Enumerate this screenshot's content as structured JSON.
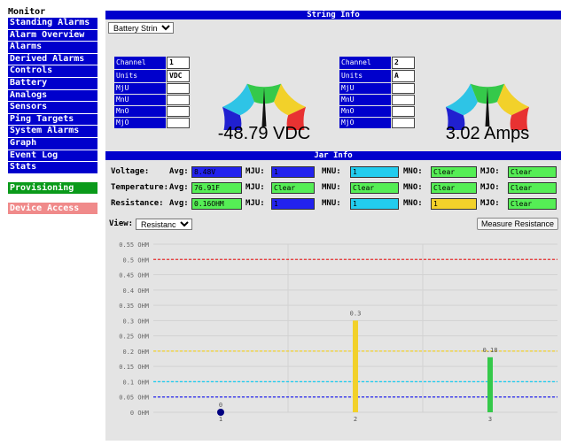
{
  "sidebar": {
    "title": "Monitor",
    "items": [
      {
        "label": "Standing Alarms"
      },
      {
        "label": "Alarm Overview"
      },
      {
        "label": "Alarms"
      },
      {
        "label": "Derived Alarms"
      },
      {
        "label": "Controls"
      },
      {
        "label": "Battery"
      },
      {
        "label": "Analogs"
      },
      {
        "label": "Sensors"
      },
      {
        "label": "Ping Targets"
      },
      {
        "label": "System Alarms"
      },
      {
        "label": "Graph"
      },
      {
        "label": "Event Log"
      },
      {
        "label": "Stats"
      }
    ],
    "provisioning": "Provisioning",
    "device_access": "Device Access"
  },
  "string_info": {
    "header": "String Info",
    "selector_value": "Battery String 1",
    "voltage": {
      "labels": [
        "Channel",
        "Units",
        "MjU",
        "MnU",
        "MnO",
        "MjO"
      ],
      "values": [
        "1",
        "VDC",
        "",
        "",
        "",
        ""
      ],
      "reading": "-48.79 VDC",
      "needle_fraction": 0.5
    },
    "current": {
      "labels": [
        "Channel",
        "Units",
        "MjU",
        "MnU",
        "MnO",
        "MjO"
      ],
      "values": [
        "2",
        "A",
        "",
        "",
        "",
        ""
      ],
      "reading": "3.02 Amps",
      "needle_fraction": 0.5
    },
    "gauge_colors": [
      "#2020d0",
      "#2ec4e6",
      "#35c94a",
      "#f2d12a",
      "#e83232"
    ]
  },
  "jar_info": {
    "header": "Jar Info",
    "rows": [
      {
        "label": "Voltage:",
        "avg_label": "Avg:",
        "avg": "8.48V",
        "avg_color": "#2222ee",
        "mju_label": "MJU:",
        "mju": "1",
        "mju_color": "#2222ee",
        "mnu_label": "MNU:",
        "mnu": "1",
        "mnu_color": "#22ccee",
        "mno_label": "MNO:",
        "mno": "Clear",
        "mno_color": "#55ee55",
        "mjo_label": "MJO:",
        "mjo": "Clear",
        "mjo_color": "#55ee55"
      },
      {
        "label": "Temperature:",
        "avg_label": "Avg:",
        "avg": "76.91F",
        "avg_color": "#55ee55",
        "mju_label": "MJU:",
        "mju": "Clear",
        "mju_color": "#55ee55",
        "mnu_label": "MNU:",
        "mnu": "Clear",
        "mnu_color": "#55ee55",
        "mno_label": "MNO:",
        "mno": "Clear",
        "mno_color": "#55ee55",
        "mjo_label": "MJO:",
        "mjo": "Clear",
        "mjo_color": "#55ee55"
      },
      {
        "label": "Resistance:",
        "avg_label": "Avg:",
        "avg": "0.16OHM",
        "avg_color": "#55ee55",
        "mju_label": "MJU:",
        "mju": "1",
        "mju_color": "#2222ee",
        "mnu_label": "MNU:",
        "mnu": "1",
        "mnu_color": "#22ccee",
        "mno_label": "MNO:",
        "mno": "1",
        "mno_color": "#f2d12a",
        "mjo_label": "MJO:",
        "mjo": "Clear",
        "mjo_color": "#55ee55"
      }
    ],
    "view_label": "View:",
    "view_value": "Resistance",
    "measure_button": "Measure Resistance"
  },
  "chart_data": {
    "type": "bar",
    "categories": [
      "1",
      "2",
      "3"
    ],
    "values": [
      0,
      0.3,
      0.18
    ],
    "value_labels": [
      "0",
      "0.3",
      "0.18"
    ],
    "bar_colors": [
      "#000080",
      "#f2d12a",
      "#35c94a"
    ],
    "yticks": [
      "0 OHM",
      "0.05 OHM",
      "0.1 OHM",
      "0.15 OHM",
      "0.2 OHM",
      "0.25 OHM",
      "0.3 OHM",
      "0.35 OHM",
      "0.4 OHM",
      "0.45 OHM",
      "0.5 OHM",
      "0.55 OHM"
    ],
    "ylim": [
      0,
      0.55
    ],
    "thresholds": [
      {
        "value": 0.5,
        "color": "#e83232"
      },
      {
        "value": 0.2,
        "color": "#f2d12a"
      },
      {
        "value": 0.1,
        "color": "#22ccee"
      },
      {
        "value": 0.05,
        "color": "#2222ee"
      }
    ],
    "grid": true
  }
}
